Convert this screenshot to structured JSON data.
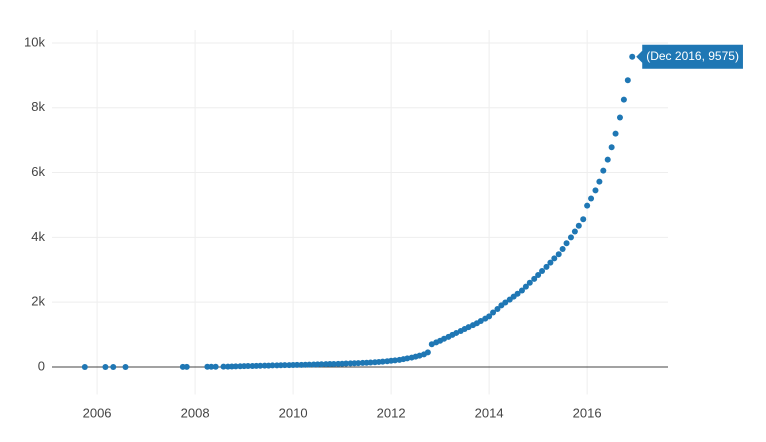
{
  "chart_data": {
    "type": "scatter",
    "color": "#1f77b4",
    "grid": true,
    "annotation": "(Dec 2016, 9575)",
    "xlim": [
      2005.08,
      2017.65
    ],
    "xticks": [
      2006,
      2008,
      2010,
      2012,
      2014,
      2016
    ],
    "ylim": [
      -850,
      10400
    ],
    "yticks": [
      0,
      {
        "value": 2000,
        "label": "2k"
      },
      {
        "value": 4000,
        "label": "4k"
      },
      {
        "value": 6000,
        "label": "6k"
      },
      {
        "value": 8000,
        "label": "8k"
      },
      {
        "value": 10000,
        "label": "10k"
      }
    ],
    "x": [
      2005.75,
      2006.17,
      2006.33,
      2006.58,
      2007.75,
      2007.83,
      2008.25,
      2008.33,
      2008.42,
      2008.58,
      2008.67,
      2008.75,
      2008.83,
      2008.92,
      2009.0,
      2009.08,
      2009.17,
      2009.25,
      2009.33,
      2009.42,
      2009.5,
      2009.58,
      2009.67,
      2009.75,
      2009.83,
      2009.92,
      2010.0,
      2010.08,
      2010.17,
      2010.25,
      2010.33,
      2010.42,
      2010.5,
      2010.58,
      2010.67,
      2010.75,
      2010.83,
      2010.92,
      2011.0,
      2011.08,
      2011.17,
      2011.25,
      2011.33,
      2011.42,
      2011.5,
      2011.58,
      2011.67,
      2011.75,
      2011.83,
      2011.92,
      2012.0,
      2012.08,
      2012.17,
      2012.25,
      2012.33,
      2012.42,
      2012.5,
      2012.58,
      2012.67,
      2012.75,
      2012.83,
      2012.92,
      2013.0,
      2013.08,
      2013.17,
      2013.25,
      2013.33,
      2013.42,
      2013.5,
      2013.58,
      2013.67,
      2013.75,
      2013.83,
      2013.92,
      2014.0,
      2014.08,
      2014.17,
      2014.25,
      2014.33,
      2014.42,
      2014.5,
      2014.58,
      2014.67,
      2014.75,
      2014.83,
      2014.92,
      2015.0,
      2015.08,
      2015.17,
      2015.25,
      2015.33,
      2015.42,
      2015.5,
      2015.58,
      2015.67,
      2015.75,
      2015.83,
      2015.92,
      2016.0,
      2016.08,
      2016.17,
      2016.25,
      2016.33,
      2016.42,
      2016.5,
      2016.58,
      2016.67,
      2016.75,
      2016.83,
      2016.92
    ],
    "values": [
      0,
      0,
      0,
      0,
      2,
      3,
      5,
      6,
      8,
      10,
      12,
      15,
      18,
      20,
      25,
      28,
      30,
      33,
      36,
      40,
      43,
      47,
      50,
      53,
      56,
      58,
      60,
      63,
      66,
      70,
      73,
      76,
      80,
      83,
      86,
      90,
      93,
      96,
      100,
      105,
      110,
      115,
      120,
      125,
      130,
      138,
      145,
      155,
      165,
      175,
      190,
      205,
      220,
      240,
      265,
      290,
      320,
      350,
      390,
      450,
      700,
      760,
      810,
      870,
      930,
      990,
      1050,
      1110,
      1170,
      1230,
      1290,
      1350,
      1420,
      1490,
      1560,
      1680,
      1790,
      1900,
      1990,
      2080,
      2170,
      2260,
      2360,
      2480,
      2600,
      2720,
      2840,
      2960,
      3090,
      3220,
      3350,
      3480,
      3640,
      3820,
      4000,
      4180,
      4360,
      4560,
      4980,
      5200,
      5450,
      5720,
      6060,
      6400,
      6780,
      7200,
      7700,
      8250,
      8850,
      9575
    ]
  }
}
